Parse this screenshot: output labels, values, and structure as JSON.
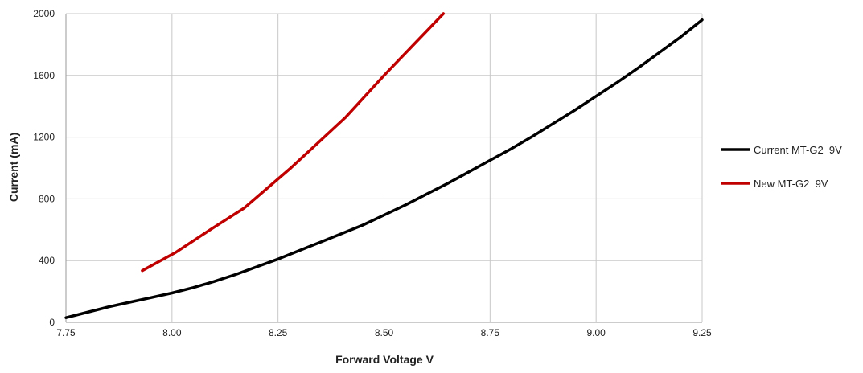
{
  "chart_data": {
    "type": "line",
    "xlabel": "Forward Voltage V",
    "ylabel": "Current (mA)",
    "xlim": [
      7.75,
      9.25
    ],
    "ylim": [
      0,
      2000
    ],
    "x_ticks": [
      7.75,
      8.0,
      8.25,
      8.5,
      8.75,
      9.0,
      9.25
    ],
    "x_tick_labels": [
      "7.75",
      "8.00",
      "8.25",
      "8.50",
      "8.75",
      "9.00",
      "9.25"
    ],
    "y_ticks": [
      0,
      400,
      800,
      1200,
      1600,
      2000
    ],
    "y_tick_labels": [
      "0",
      "400",
      "800",
      "1200",
      "1600",
      "2000"
    ],
    "grid": true,
    "legend_position": "right",
    "series": [
      {
        "name": "Current MT-G2  9V",
        "color": "#000000",
        "points": [
          [
            7.75,
            30
          ],
          [
            7.8,
            65
          ],
          [
            7.85,
            100
          ],
          [
            7.9,
            130
          ],
          [
            7.95,
            160
          ],
          [
            8.0,
            190
          ],
          [
            8.05,
            225
          ],
          [
            8.1,
            265
          ],
          [
            8.15,
            310
          ],
          [
            8.2,
            360
          ],
          [
            8.25,
            410
          ],
          [
            8.3,
            465
          ],
          [
            8.35,
            520
          ],
          [
            8.4,
            575
          ],
          [
            8.45,
            630
          ],
          [
            8.5,
            695
          ],
          [
            8.55,
            760
          ],
          [
            8.6,
            830
          ],
          [
            8.65,
            900
          ],
          [
            8.7,
            975
          ],
          [
            8.75,
            1050
          ],
          [
            8.8,
            1125
          ],
          [
            8.85,
            1205
          ],
          [
            8.9,
            1290
          ],
          [
            8.95,
            1375
          ],
          [
            9.0,
            1465
          ],
          [
            9.05,
            1555
          ],
          [
            9.1,
            1650
          ],
          [
            9.15,
            1750
          ],
          [
            9.2,
            1850
          ],
          [
            9.25,
            1960
          ]
        ]
      },
      {
        "name": "New MT-G2  9V",
        "color": "#c00000",
        "points": [
          [
            7.93,
            335
          ],
          [
            8.01,
            455
          ],
          [
            8.09,
            600
          ],
          [
            8.17,
            740
          ],
          [
            8.28,
            1000
          ],
          [
            8.41,
            1330
          ],
          [
            8.5,
            1600
          ],
          [
            8.57,
            1800
          ],
          [
            8.64,
            2000
          ]
        ]
      }
    ]
  }
}
